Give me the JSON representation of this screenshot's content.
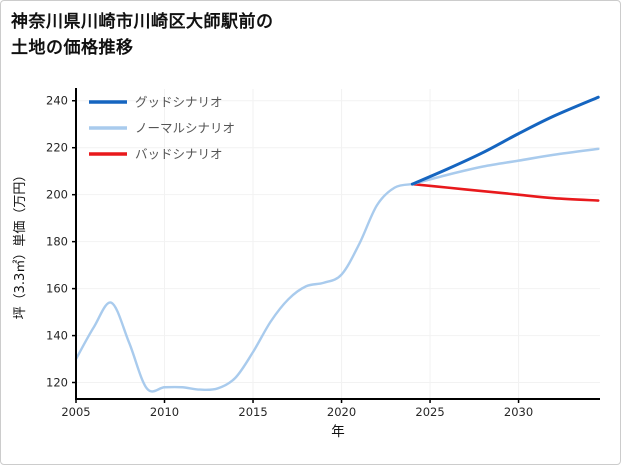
{
  "page": {
    "title_line1": "神奈川県川崎市川崎区大師駅前の",
    "title_line2": "土地の価格推移"
  },
  "chart_data": {
    "type": "line",
    "title": "神奈川県川崎市川崎区大師駅前の土地の価格推移",
    "xlabel": "年",
    "ylabel": "坪（3.3㎡）単価（万円）",
    "xlim": [
      2005,
      2034.6
    ],
    "ylim": [
      113,
      245
    ],
    "xticks": [
      2005,
      2010,
      2015,
      2020,
      2025,
      2030
    ],
    "yticks": [
      120,
      140,
      160,
      180,
      200,
      220,
      240
    ],
    "grid": true,
    "legend_position": "top-left",
    "legend_order": [
      "good",
      "normal",
      "bad"
    ],
    "colors": {
      "good": "#1565c0",
      "normal": "#a9cbed",
      "bad": "#e8191c",
      "axis": "#000000",
      "grid": "#f2f2f2",
      "text": "#262626",
      "legend_text": "#555555"
    },
    "series": [
      {
        "id": "history",
        "in_legend": false,
        "color_key": "normal",
        "width": 2.4,
        "x": [
          2005,
          2006,
          2007,
          2008,
          2009,
          2010,
          2011,
          2012,
          2013,
          2014,
          2015,
          2016,
          2017,
          2018,
          2019,
          2020,
          2021,
          2022,
          2023,
          2024
        ],
        "y": [
          130,
          143.5,
          154,
          137,
          117.5,
          118,
          118,
          117,
          117.5,
          122,
          133,
          146,
          155.5,
          161,
          162.5,
          166,
          179,
          195.5,
          203,
          204.5
        ]
      },
      {
        "id": "bad",
        "name": "バッドシナリオ",
        "in_legend": true,
        "color_key": "bad",
        "width": 2.6,
        "x": [
          2024,
          2026,
          2028,
          2030,
          2032,
          2034.5
        ],
        "y": [
          204.5,
          203,
          201.5,
          200,
          198.5,
          197.5
        ]
      },
      {
        "id": "normal",
        "name": "ノーマルシナリオ",
        "in_legend": true,
        "color_key": "normal",
        "width": 2.6,
        "x": [
          2024,
          2026,
          2028,
          2030,
          2032,
          2034.5
        ],
        "y": [
          204.5,
          208.5,
          212,
          214.5,
          217,
          219.5
        ]
      },
      {
        "id": "good",
        "name": "グッドシナリオ",
        "in_legend": true,
        "color_key": "good",
        "width": 3,
        "x": [
          2024,
          2026,
          2028,
          2030,
          2032,
          2034.5
        ],
        "y": [
          204.5,
          211,
          218,
          226,
          233.5,
          241.5
        ]
      }
    ]
  }
}
